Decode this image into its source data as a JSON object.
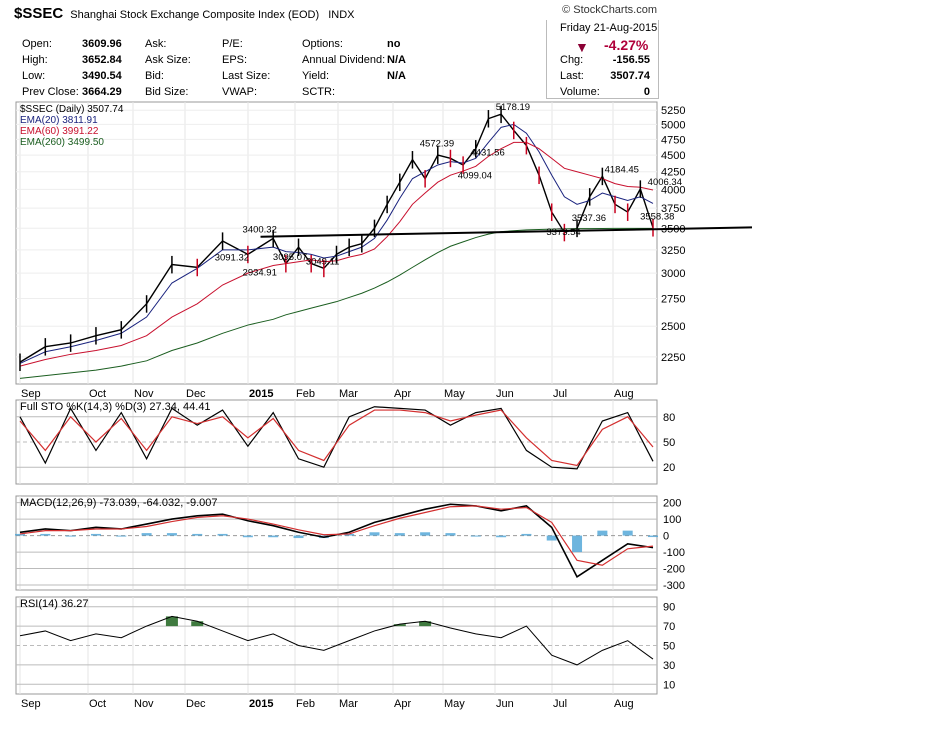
{
  "header": {
    "symbol": "$SSEC",
    "name": "Shanghai Stock Exchange Composite Index (EOD)",
    "exchange": "INDX",
    "credit": "© StockCharts.com",
    "date": "Friday  21-Aug-2015",
    "pct_change": "-4.27%",
    "quote": [
      {
        "label": "Open:",
        "value": "3609.96"
      },
      {
        "label": "High:",
        "value": "3652.84"
      },
      {
        "label": "Low:",
        "value": "3490.54"
      },
      {
        "label": "Prev Close:",
        "value": "3664.29"
      },
      {
        "label": "Ask:",
        "value": ""
      },
      {
        "label": "Ask Size:",
        "value": ""
      },
      {
        "label": "Bid:",
        "value": ""
      },
      {
        "label": "Bid Size:",
        "value": ""
      },
      {
        "label": "P/E:",
        "value": ""
      },
      {
        "label": "EPS:",
        "value": ""
      },
      {
        "label": "Last Size:",
        "value": ""
      },
      {
        "label": "VWAP:",
        "value": ""
      },
      {
        "label": "Options:",
        "value": "no"
      },
      {
        "label": "Annual Dividend:",
        "value": "N/A"
      },
      {
        "label": "Yield:",
        "value": "N/A"
      },
      {
        "label": "SCTR:",
        "value": ""
      },
      {
        "label": "Chg:",
        "value": "-156.55"
      },
      {
        "label": "Last:",
        "value": "3507.74"
      },
      {
        "label": "Volume:",
        "value": "0"
      }
    ]
  },
  "colors": {
    "up": "#000000",
    "down": "#c8001e",
    "ema20": "#1a237e",
    "ema60": "#c8102e",
    "ema260": "#1b5e20",
    "macd_hist": "#4aa3d6",
    "rsi_fill": "#3f7a3f",
    "down_arrow": "#8b0035"
  },
  "chart_data": [
    {
      "type": "line",
      "panel": "price",
      "legend": [
        "$SSEC (Daily) 3507.74",
        "EMA(20) 3811.91",
        "EMA(60) 3991.22",
        "EMA(260) 3499.50"
      ],
      "x_ticks": [
        "Sep",
        "Oct",
        "Nov",
        "Dec",
        "2015",
        "Feb",
        "Mar",
        "Apr",
        "May",
        "Jun",
        "Jul",
        "Aug"
      ],
      "y_ticks": [
        2250,
        2500,
        2750,
        3000,
        3250,
        3500,
        3750,
        4000,
        4250,
        4500,
        4750,
        5000,
        5250
      ],
      "scale": "log",
      "ylim": [
        2050,
        5400
      ],
      "x": [
        0,
        10,
        20,
        30,
        40,
        50,
        60,
        70,
        80,
        90,
        100,
        105,
        110,
        115,
        120,
        125,
        130,
        135,
        140,
        145,
        150,
        155,
        160,
        165,
        170,
        175,
        180,
        185,
        190,
        195,
        200,
        205,
        210,
        215,
        220,
        225,
        230,
        235,
        240,
        245,
        250
      ],
      "series": [
        {
          "name": "$SSEC",
          "values": [
            2210,
            2330,
            2360,
            2420,
            2470,
            2700,
            3090,
            3060,
            3350,
            3200,
            3380,
            3100,
            3280,
            3100,
            3050,
            3200,
            3280,
            3320,
            3500,
            3800,
            4100,
            4430,
            4150,
            4500,
            4450,
            4350,
            4600,
            5100,
            5178,
            4900,
            4650,
            4200,
            3700,
            3450,
            3500,
            3900,
            4184,
            3800,
            3700,
            4006,
            3507
          ]
        },
        {
          "name": "EMA(20)",
          "values": [
            2200,
            2290,
            2330,
            2380,
            2440,
            2580,
            2900,
            3050,
            3250,
            3250,
            3280,
            3230,
            3220,
            3200,
            3160,
            3180,
            3230,
            3280,
            3380,
            3600,
            3880,
            4150,
            4250,
            4350,
            4400,
            4380,
            4450,
            4700,
            4950,
            5000,
            4850,
            4550,
            4200,
            3900,
            3800,
            3850,
            3950,
            3900,
            3850,
            3900,
            3811
          ]
        },
        {
          "name": "EMA(60)",
          "values": [
            2180,
            2230,
            2270,
            2300,
            2340,
            2420,
            2580,
            2700,
            2880,
            3000,
            3080,
            3100,
            3120,
            3140,
            3120,
            3130,
            3170,
            3200,
            3260,
            3400,
            3580,
            3800,
            3950,
            4100,
            4200,
            4260,
            4330,
            4480,
            4600,
            4700,
            4700,
            4600,
            4450,
            4300,
            4250,
            4200,
            4150,
            4080,
            4040,
            4030,
            3991
          ]
        },
        {
          "name": "EMA(260)",
          "values": [
            2090,
            2110,
            2130,
            2150,
            2180,
            2220,
            2300,
            2360,
            2440,
            2510,
            2560,
            2600,
            2630,
            2660,
            2690,
            2720,
            2760,
            2800,
            2850,
            2910,
            2980,
            3060,
            3140,
            3220,
            3290,
            3340,
            3390,
            3430,
            3460,
            3470,
            3480,
            3485,
            3490,
            3492,
            3495,
            3496,
            3497,
            3498,
            3499,
            3499,
            3499
          ]
        }
      ],
      "annotations": [
        {
          "text": "3400.32",
          "x": 95,
          "y": 3400.32
        },
        {
          "text": "3091.32",
          "x": 84,
          "y": 3091.32
        },
        {
          "text": "2934.91",
          "x": 95,
          "y": 2934.91
        },
        {
          "text": "3095.07",
          "x": 107,
          "y": 3095.07
        },
        {
          "text": "3049.11",
          "x": 120,
          "y": 3049.11
        },
        {
          "text": "4572.39",
          "x": 165,
          "y": 4572.39
        },
        {
          "text": "4431.56",
          "x": 185,
          "y": 4431.56
        },
        {
          "text": "4099.04",
          "x": 180,
          "y": 4099.04
        },
        {
          "text": "5178.19",
          "x": 195,
          "y": 5178.19
        },
        {
          "text": "4184.45",
          "x": 238,
          "y": 4184.45
        },
        {
          "text": "4006.34",
          "x": 255,
          "y": 4006.34
        },
        {
          "text": "3537.36",
          "x": 225,
          "y": 3537.36
        },
        {
          "text": "3558.38",
          "x": 252,
          "y": 3558.38
        },
        {
          "text": "3373.54",
          "x": 215,
          "y": 3373.54
        }
      ]
    },
    {
      "type": "line",
      "panel": "stochastic",
      "legend": [
        "Full STO %K(14,3) %D(3) 27.34, 44.41"
      ],
      "y_ticks": [
        20,
        50,
        80
      ],
      "ylim": [
        0,
        100
      ],
      "x": [
        0,
        10,
        20,
        30,
        40,
        50,
        60,
        70,
        80,
        90,
        100,
        110,
        120,
        130,
        140,
        150,
        160,
        170,
        180,
        190,
        200,
        210,
        220,
        230,
        240,
        250
      ],
      "series": [
        {
          "name": "%K",
          "values": [
            80,
            25,
            90,
            40,
            85,
            30,
            90,
            70,
            88,
            45,
            85,
            30,
            20,
            80,
            92,
            90,
            88,
            70,
            85,
            90,
            40,
            20,
            18,
            75,
            85,
            27
          ]
        },
        {
          "name": "%D",
          "values": [
            75,
            40,
            80,
            50,
            78,
            40,
            80,
            72,
            80,
            55,
            78,
            40,
            28,
            70,
            88,
            88,
            85,
            75,
            82,
            88,
            55,
            28,
            22,
            65,
            80,
            44
          ]
        }
      ]
    },
    {
      "type": "line",
      "panel": "macd",
      "legend": [
        "MACD(12,26,9) -73.039, -64.032, -9.007"
      ],
      "y_ticks": [
        -300,
        -200,
        -100,
        0,
        100,
        200
      ],
      "ylim": [
        -330,
        240
      ],
      "x": [
        0,
        10,
        20,
        30,
        40,
        50,
        60,
        70,
        80,
        90,
        100,
        110,
        120,
        130,
        140,
        150,
        160,
        170,
        180,
        190,
        200,
        210,
        220,
        230,
        240,
        250
      ],
      "series": [
        {
          "name": "MACD",
          "values": [
            20,
            40,
            30,
            50,
            40,
            70,
            100,
            120,
            130,
            90,
            60,
            20,
            -10,
            20,
            80,
            120,
            160,
            190,
            180,
            150,
            180,
            50,
            -250,
            -150,
            -50,
            -73
          ]
        },
        {
          "name": "Signal",
          "values": [
            10,
            30,
            30,
            40,
            40,
            55,
            85,
            110,
            120,
            100,
            70,
            35,
            5,
            10,
            60,
            105,
            140,
            175,
            180,
            160,
            170,
            80,
            -150,
            -180,
            -80,
            -64
          ]
        },
        {
          "name": "Histogram",
          "values": [
            10,
            10,
            0,
            10,
            0,
            15,
            15,
            10,
            10,
            -10,
            -10,
            -15,
            -15,
            10,
            20,
            15,
            20,
            15,
            0,
            -10,
            10,
            -30,
            -100,
            30,
            30,
            -9
          ]
        }
      ]
    },
    {
      "type": "line",
      "panel": "rsi",
      "legend": [
        "RSI(14) 36.27"
      ],
      "y_ticks": [
        10,
        30,
        50,
        70,
        90
      ],
      "ylim": [
        0,
        100
      ],
      "x": [
        0,
        10,
        20,
        30,
        40,
        50,
        60,
        70,
        80,
        90,
        100,
        110,
        120,
        130,
        140,
        150,
        160,
        170,
        180,
        190,
        200,
        210,
        220,
        230,
        240,
        250
      ],
      "series": [
        {
          "name": "RSI",
          "values": [
            60,
            65,
            55,
            62,
            58,
            70,
            80,
            75,
            65,
            55,
            62,
            50,
            45,
            55,
            65,
            72,
            75,
            68,
            62,
            58,
            70,
            40,
            30,
            45,
            55,
            36
          ]
        }
      ]
    }
  ]
}
